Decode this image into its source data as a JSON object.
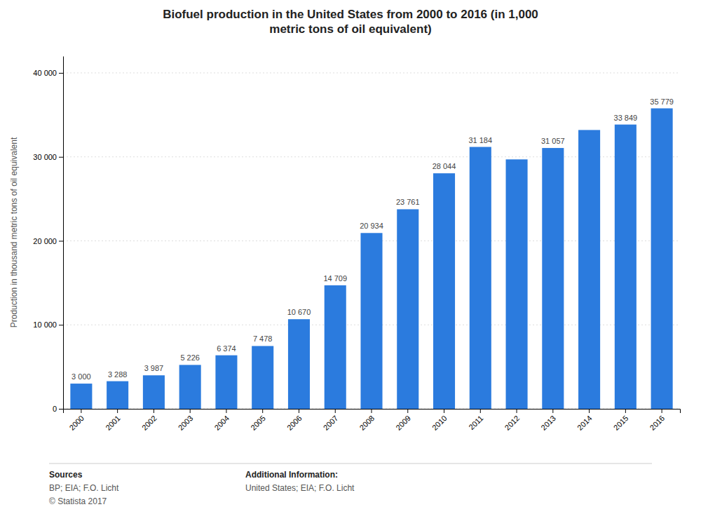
{
  "chart_data": {
    "type": "bar",
    "title": "Biofuel production in the United States from 2000 to 2016 (in 1,000\nmetric tons of oil equivalent)",
    "ylabel": "Production in thousand metric tons of oil equivalent",
    "categories": [
      "2000",
      "2001",
      "2002",
      "2003",
      "2004",
      "2005",
      "2006",
      "2007",
      "2008",
      "2009",
      "2010",
      "2011",
      "2012",
      "2013",
      "2014",
      "2015",
      "2016"
    ],
    "values": [
      3000,
      3288,
      3987,
      5226,
      6374,
      7478,
      10670,
      14709,
      20934,
      23761,
      28044,
      31184,
      29700,
      31057,
      33200,
      33849,
      35779
    ],
    "value_labels": [
      "3 000",
      "3 288",
      "3 987",
      "5 226",
      "6 374",
      "7 478",
      "10 670",
      "14 709",
      "20 934",
      "23 761",
      "28 044",
      "31 184",
      null,
      "31 057",
      null,
      "33 849",
      "35 779"
    ],
    "data_labels": true,
    "color": "#2b7bde",
    "ylim": [
      0,
      42000
    ],
    "yticks": [
      0,
      {
        "value": 10000,
        "label": "10 000"
      },
      {
        "value": 20000,
        "label": "20 000"
      },
      {
        "value": 30000,
        "label": "30 000"
      },
      {
        "value": 40000,
        "label": "40 000"
      }
    ],
    "grid": true,
    "annotations": [
      [
        "Sources",
        "BP; EIA; F.O. Licht",
        "© Statista 2017"
      ],
      [
        "Additional Information:",
        "United States; EIA; F.O. Licht"
      ]
    ]
  }
}
